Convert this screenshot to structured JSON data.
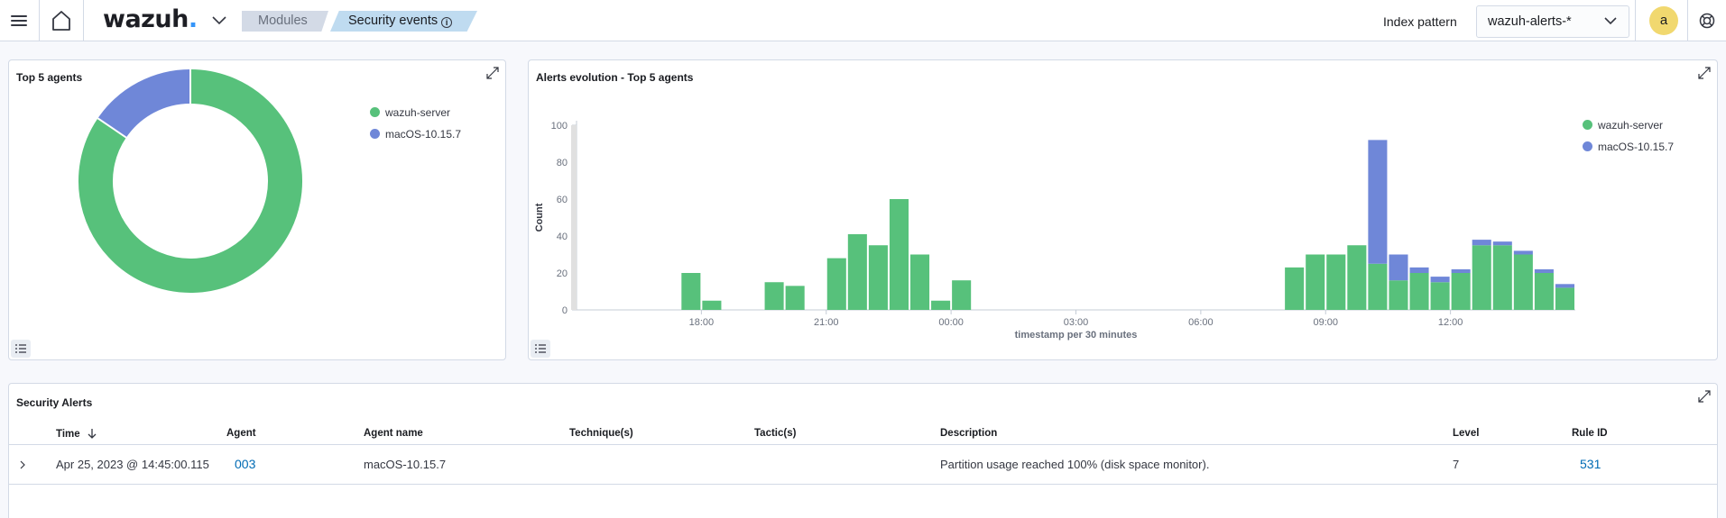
{
  "header": {
    "logo_text": "wazuh",
    "logo_dot": ".",
    "breadcrumbs": [
      "Modules",
      "Security events"
    ],
    "info_glyph": "i",
    "index_pattern_label": "Index pattern",
    "index_pattern_value": "wazuh-alerts-*",
    "avatar_initial": "a"
  },
  "colors": {
    "wazuh_server": "#57c17b",
    "macos": "#6f87d8",
    "link": "#006bb4",
    "accent": "#3595f9"
  },
  "top5": {
    "title": "Top 5 agents",
    "legend": [
      "wazuh-server",
      "macOS-10.15.7"
    ]
  },
  "evolution": {
    "title": "Alerts evolution - Top 5 agents",
    "legend": [
      "wazuh-server",
      "macOS-10.15.7"
    ]
  },
  "chart_data": [
    {
      "type": "pie",
      "title": "Top 5 agents",
      "donut": true,
      "categories": [
        "wazuh-server",
        "macOS-10.15.7"
      ],
      "values": [
        84.5,
        15.5
      ],
      "colors": [
        "#57c17b",
        "#6f87d8"
      ],
      "legend_position": "top-right"
    },
    {
      "type": "bar",
      "stacked": true,
      "title": "Alerts evolution - Top 5 agents",
      "xlabel": "timestamp per 30 minutes",
      "ylabel": "Count",
      "ylim": [
        0,
        100
      ],
      "yticks": [
        0,
        20,
        40,
        60,
        80,
        100
      ],
      "xticks": [
        "18:00",
        "21:00",
        "00:00",
        "03:00",
        "06:00",
        "09:00",
        "12:00"
      ],
      "xlim": [
        "Apr 24 15:00",
        "Apr 25 15:00"
      ],
      "legend_position": "top-right",
      "x": [
        "17:30",
        "18:00",
        "19:30",
        "20:00",
        "21:00",
        "21:30",
        "22:00",
        "22:30",
        "23:00",
        "23:30",
        "00:00",
        "08:00",
        "08:30",
        "09:00",
        "09:30",
        "10:00",
        "10:30",
        "11:00",
        "11:30",
        "12:00",
        "12:30",
        "13:00",
        "13:30",
        "14:00",
        "14:30"
      ],
      "series": [
        {
          "name": "wazuh-server",
          "color": "#57c17b",
          "values": [
            20,
            5,
            15,
            13,
            28,
            41,
            35,
            60,
            30,
            5,
            16,
            23,
            30,
            30,
            35,
            25,
            16,
            20,
            15,
            20,
            35,
            35,
            30,
            20,
            12
          ]
        },
        {
          "name": "macOS-10.15.7",
          "color": "#6f87d8",
          "values": [
            0,
            0,
            0,
            0,
            0,
            0,
            0,
            0,
            0,
            0,
            0,
            0,
            0,
            0,
            0,
            67,
            14,
            3,
            3,
            2,
            3,
            2,
            2,
            2,
            2
          ]
        }
      ]
    }
  ],
  "alerts": {
    "title": "Security Alerts",
    "columns": [
      "Time",
      "Agent",
      "Agent name",
      "Technique(s)",
      "Tactic(s)",
      "Description",
      "Level",
      "Rule ID"
    ],
    "rows": [
      {
        "time": "Apr 25, 2023 @ 14:45:00.115",
        "agent": "003",
        "agent_name": "macOS-10.15.7",
        "techniques": "",
        "tactics": "",
        "description": "Partition usage reached 100% (disk space monitor).",
        "level": "7",
        "rule_id": "531"
      }
    ]
  }
}
